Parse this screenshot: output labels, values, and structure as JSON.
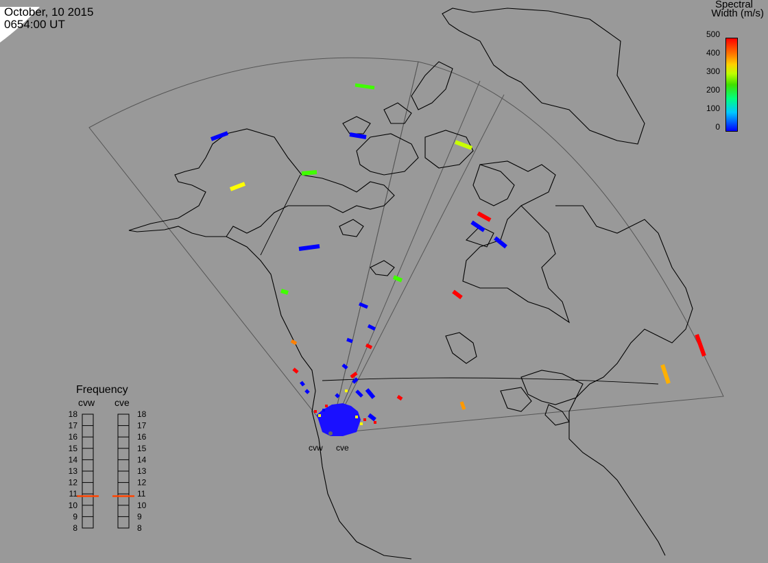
{
  "header": {
    "date": "October, 10 2015",
    "time": "0654:00 UT"
  },
  "colorbar": {
    "title_line1": "Spectral",
    "title_line2": "Width (m/s)",
    "ticks": [
      "500",
      "400",
      "300",
      "200",
      "100",
      "0"
    ]
  },
  "frequency_panel": {
    "title": "Frequency",
    "radars": [
      "cvw",
      "cve"
    ],
    "ticks": [
      "18",
      "17",
      "16",
      "15",
      "14",
      "13",
      "12",
      "11",
      "10",
      "9",
      "8"
    ],
    "selected_frequency": 10.8,
    "marker_color": "#ff4400"
  },
  "sites": {
    "cvw_label": "cvw",
    "cve_label": "cve"
  },
  "colors": {
    "background": "#999999",
    "land_outline": "#000000",
    "fov_outline": "#555555"
  }
}
